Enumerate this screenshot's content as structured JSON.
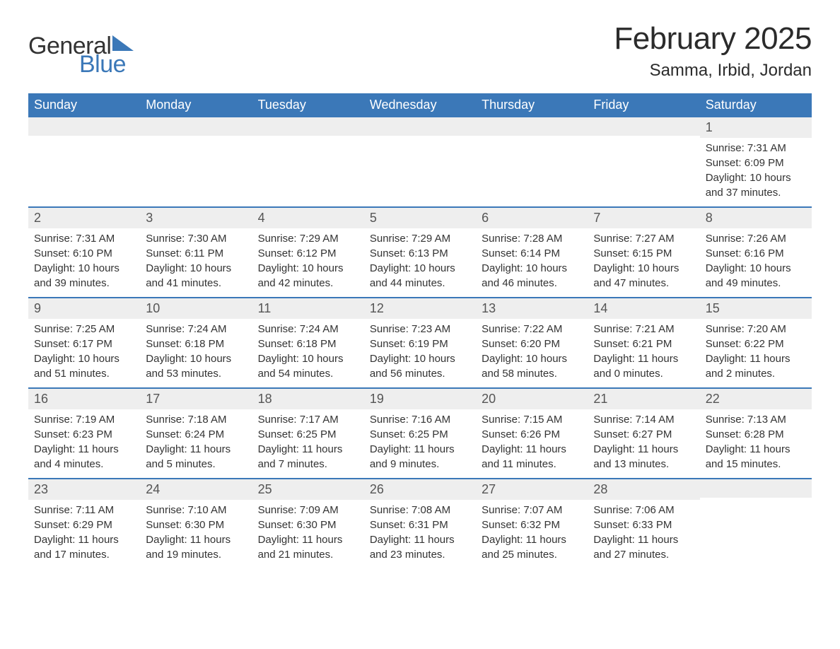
{
  "logo": {
    "text1": "General",
    "text2": "Blue",
    "flag_color": "#3b78b8"
  },
  "title": "February 2025",
  "location": "Samma, Irbid, Jordan",
  "colors": {
    "header_bg": "#3b78b8",
    "header_text": "#ffffff",
    "daynum_bg": "#eeeeee",
    "row_border": "#3b78b8",
    "body_text": "#333333"
  },
  "dow": [
    "Sunday",
    "Monday",
    "Tuesday",
    "Wednesday",
    "Thursday",
    "Friday",
    "Saturday"
  ],
  "weeks": [
    [
      {
        "n": "",
        "sr": "",
        "ss": "",
        "d1": "",
        "d2": ""
      },
      {
        "n": "",
        "sr": "",
        "ss": "",
        "d1": "",
        "d2": ""
      },
      {
        "n": "",
        "sr": "",
        "ss": "",
        "d1": "",
        "d2": ""
      },
      {
        "n": "",
        "sr": "",
        "ss": "",
        "d1": "",
        "d2": ""
      },
      {
        "n": "",
        "sr": "",
        "ss": "",
        "d1": "",
        "d2": ""
      },
      {
        "n": "",
        "sr": "",
        "ss": "",
        "d1": "",
        "d2": ""
      },
      {
        "n": "1",
        "sr": "Sunrise: 7:31 AM",
        "ss": "Sunset: 6:09 PM",
        "d1": "Daylight: 10 hours",
        "d2": "and 37 minutes."
      }
    ],
    [
      {
        "n": "2",
        "sr": "Sunrise: 7:31 AM",
        "ss": "Sunset: 6:10 PM",
        "d1": "Daylight: 10 hours",
        "d2": "and 39 minutes."
      },
      {
        "n": "3",
        "sr": "Sunrise: 7:30 AM",
        "ss": "Sunset: 6:11 PM",
        "d1": "Daylight: 10 hours",
        "d2": "and 41 minutes."
      },
      {
        "n": "4",
        "sr": "Sunrise: 7:29 AM",
        "ss": "Sunset: 6:12 PM",
        "d1": "Daylight: 10 hours",
        "d2": "and 42 minutes."
      },
      {
        "n": "5",
        "sr": "Sunrise: 7:29 AM",
        "ss": "Sunset: 6:13 PM",
        "d1": "Daylight: 10 hours",
        "d2": "and 44 minutes."
      },
      {
        "n": "6",
        "sr": "Sunrise: 7:28 AM",
        "ss": "Sunset: 6:14 PM",
        "d1": "Daylight: 10 hours",
        "d2": "and 46 minutes."
      },
      {
        "n": "7",
        "sr": "Sunrise: 7:27 AM",
        "ss": "Sunset: 6:15 PM",
        "d1": "Daylight: 10 hours",
        "d2": "and 47 minutes."
      },
      {
        "n": "8",
        "sr": "Sunrise: 7:26 AM",
        "ss": "Sunset: 6:16 PM",
        "d1": "Daylight: 10 hours",
        "d2": "and 49 minutes."
      }
    ],
    [
      {
        "n": "9",
        "sr": "Sunrise: 7:25 AM",
        "ss": "Sunset: 6:17 PM",
        "d1": "Daylight: 10 hours",
        "d2": "and 51 minutes."
      },
      {
        "n": "10",
        "sr": "Sunrise: 7:24 AM",
        "ss": "Sunset: 6:18 PM",
        "d1": "Daylight: 10 hours",
        "d2": "and 53 minutes."
      },
      {
        "n": "11",
        "sr": "Sunrise: 7:24 AM",
        "ss": "Sunset: 6:18 PM",
        "d1": "Daylight: 10 hours",
        "d2": "and 54 minutes."
      },
      {
        "n": "12",
        "sr": "Sunrise: 7:23 AM",
        "ss": "Sunset: 6:19 PM",
        "d1": "Daylight: 10 hours",
        "d2": "and 56 minutes."
      },
      {
        "n": "13",
        "sr": "Sunrise: 7:22 AM",
        "ss": "Sunset: 6:20 PM",
        "d1": "Daylight: 10 hours",
        "d2": "and 58 minutes."
      },
      {
        "n": "14",
        "sr": "Sunrise: 7:21 AM",
        "ss": "Sunset: 6:21 PM",
        "d1": "Daylight: 11 hours",
        "d2": "and 0 minutes."
      },
      {
        "n": "15",
        "sr": "Sunrise: 7:20 AM",
        "ss": "Sunset: 6:22 PM",
        "d1": "Daylight: 11 hours",
        "d2": "and 2 minutes."
      }
    ],
    [
      {
        "n": "16",
        "sr": "Sunrise: 7:19 AM",
        "ss": "Sunset: 6:23 PM",
        "d1": "Daylight: 11 hours",
        "d2": "and 4 minutes."
      },
      {
        "n": "17",
        "sr": "Sunrise: 7:18 AM",
        "ss": "Sunset: 6:24 PM",
        "d1": "Daylight: 11 hours",
        "d2": "and 5 minutes."
      },
      {
        "n": "18",
        "sr": "Sunrise: 7:17 AM",
        "ss": "Sunset: 6:25 PM",
        "d1": "Daylight: 11 hours",
        "d2": "and 7 minutes."
      },
      {
        "n": "19",
        "sr": "Sunrise: 7:16 AM",
        "ss": "Sunset: 6:25 PM",
        "d1": "Daylight: 11 hours",
        "d2": "and 9 minutes."
      },
      {
        "n": "20",
        "sr": "Sunrise: 7:15 AM",
        "ss": "Sunset: 6:26 PM",
        "d1": "Daylight: 11 hours",
        "d2": "and 11 minutes."
      },
      {
        "n": "21",
        "sr": "Sunrise: 7:14 AM",
        "ss": "Sunset: 6:27 PM",
        "d1": "Daylight: 11 hours",
        "d2": "and 13 minutes."
      },
      {
        "n": "22",
        "sr": "Sunrise: 7:13 AM",
        "ss": "Sunset: 6:28 PM",
        "d1": "Daylight: 11 hours",
        "d2": "and 15 minutes."
      }
    ],
    [
      {
        "n": "23",
        "sr": "Sunrise: 7:11 AM",
        "ss": "Sunset: 6:29 PM",
        "d1": "Daylight: 11 hours",
        "d2": "and 17 minutes."
      },
      {
        "n": "24",
        "sr": "Sunrise: 7:10 AM",
        "ss": "Sunset: 6:30 PM",
        "d1": "Daylight: 11 hours",
        "d2": "and 19 minutes."
      },
      {
        "n": "25",
        "sr": "Sunrise: 7:09 AM",
        "ss": "Sunset: 6:30 PM",
        "d1": "Daylight: 11 hours",
        "d2": "and 21 minutes."
      },
      {
        "n": "26",
        "sr": "Sunrise: 7:08 AM",
        "ss": "Sunset: 6:31 PM",
        "d1": "Daylight: 11 hours",
        "d2": "and 23 minutes."
      },
      {
        "n": "27",
        "sr": "Sunrise: 7:07 AM",
        "ss": "Sunset: 6:32 PM",
        "d1": "Daylight: 11 hours",
        "d2": "and 25 minutes."
      },
      {
        "n": "28",
        "sr": "Sunrise: 7:06 AM",
        "ss": "Sunset: 6:33 PM",
        "d1": "Daylight: 11 hours",
        "d2": "and 27 minutes."
      },
      {
        "n": "",
        "sr": "",
        "ss": "",
        "d1": "",
        "d2": ""
      }
    ]
  ]
}
